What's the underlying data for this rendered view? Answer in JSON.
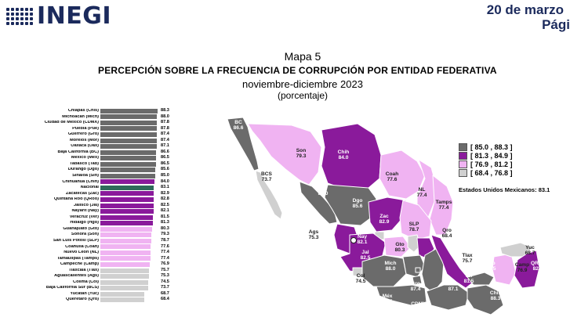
{
  "header": {
    "logo_text": "INEGI",
    "date": "20 de marzo",
    "page": "Pági"
  },
  "map": {
    "label": "Mapa 5",
    "title": "PERCEPCIÓN SOBRE LA FRECUENCIA DE CORRUPCIÓN POR ENTIDAD FEDERATIVA",
    "subtitle": "noviembre-diciembre 2023",
    "unit": "(porcentaje)",
    "national_label": "Estados Unidos Mexicanos:",
    "national_value": "83.1"
  },
  "legend": [
    {
      "label": "[ 85.0 , 88.3 ]",
      "color": "#6b6b6b"
    },
    {
      "label": "[ 81.3 , 84.9 ]",
      "color": "#8a1a9b"
    },
    {
      "label": "[ 76.9 , 81.2 ]",
      "color": "#f0b3f2"
    },
    {
      "label": "[ 68.4 , 76.8 ]",
      "color": "#d0d0d0"
    }
  ],
  "chart_data": {
    "type": "bar",
    "categories": [
      "Chiapas (Chis)",
      "Michoacán (Mich)",
      "Ciudad de México (CDMX)",
      "Puebla (Pue)",
      "Guerrero (Gro)",
      "Morelos (Mor)",
      "Oaxaca (Oax)",
      "Baja California (BC)",
      "México (Méx)",
      "Tabasco (Tab)",
      "Durango (Dgo)",
      "Sinaloa (Sin)",
      "Chihuahua (Chih)",
      "Nacional",
      "Zacatecas (Zac)",
      "Quintana Roo (QRoo)",
      "Jalisco (Jal)",
      "Nayarit (Nay)",
      "Veracruz (Ver)",
      "Hidalgo (Hgo)",
      "Guanajuato (Gto)",
      "Sonora (Son)",
      "San Luis Potosí (SLP)",
      "Coahuila (Coah)",
      "Nuevo León (NL)",
      "Tamaulipas (Tamps)",
      "Campeche (Camp)",
      "Tlaxcala (Tlax)",
      "Aguascalientes (Ags)",
      "Colima (Col)",
      "Baja California Sur (BCS)",
      "Yucatán (Yuc)",
      "Querétaro (Qro)"
    ],
    "values": [
      88.3,
      88.0,
      87.8,
      87.8,
      87.4,
      87.4,
      87.1,
      86.6,
      86.5,
      86.5,
      85.6,
      85.0,
      84.0,
      83.1,
      82.9,
      82.8,
      82.5,
      82.1,
      81.5,
      81.3,
      80.3,
      79.3,
      78.7,
      77.6,
      77.4,
      77.4,
      76.9,
      75.7,
      75.3,
      74.5,
      73.7,
      68.7,
      68.4
    ],
    "colors": [
      "#6b6b6b",
      "#6b6b6b",
      "#6b6b6b",
      "#6b6b6b",
      "#6b6b6b",
      "#6b6b6b",
      "#6b6b6b",
      "#6b6b6b",
      "#6b6b6b",
      "#6b6b6b",
      "#6b6b6b",
      "#6b6b6b",
      "#8a1a9b",
      "#2e6b5a",
      "#8a1a9b",
      "#8a1a9b",
      "#8a1a9b",
      "#8a1a9b",
      "#8a1a9b",
      "#8a1a9b",
      "#f0b3f2",
      "#f0b3f2",
      "#f0b3f2",
      "#f0b3f2",
      "#f0b3f2",
      "#f0b3f2",
      "#f0b3f2",
      "#d0d0d0",
      "#d0d0d0",
      "#d0d0d0",
      "#d0d0d0",
      "#d0d0d0",
      "#d0d0d0"
    ],
    "title": "",
    "xlabel": "",
    "ylabel": ""
  },
  "map_states": [
    {
      "abbr": "BC",
      "value": "86.6",
      "color": "#6b6b6b"
    },
    {
      "abbr": "BCS",
      "value": "73.7",
      "color": "#d0d0d0"
    },
    {
      "abbr": "Son",
      "value": "79.3",
      "color": "#f0b3f2"
    },
    {
      "abbr": "Chih",
      "value": "84.0",
      "color": "#8a1a9b"
    },
    {
      "abbr": "Coah",
      "value": "77.6",
      "color": "#f0b3f2"
    },
    {
      "abbr": "NL",
      "value": "77.4",
      "color": "#f0b3f2"
    },
    {
      "abbr": "Tamps",
      "value": "77.4",
      "color": "#f0b3f2"
    },
    {
      "abbr": "Sin",
      "value": "85.0",
      "color": "#6b6b6b"
    },
    {
      "abbr": "Dgo",
      "value": "85.6",
      "color": "#6b6b6b"
    },
    {
      "abbr": "Zac",
      "value": "82.9",
      "color": "#8a1a9b"
    },
    {
      "abbr": "SLP",
      "value": "78.7",
      "color": "#f0b3f2"
    },
    {
      "abbr": "Ags",
      "value": "75.3",
      "color": "#d0d0d0"
    },
    {
      "abbr": "Nay",
      "value": "82.1",
      "color": "#8a1a9b"
    },
    {
      "abbr": "Jal",
      "value": "82.5",
      "color": "#8a1a9b"
    },
    {
      "abbr": "Gto",
      "value": "80.3",
      "color": "#f0b3f2"
    },
    {
      "abbr": "Qro",
      "value": "68.4",
      "color": "#d0d0d0"
    },
    {
      "abbr": "Hgo",
      "value": "81.3",
      "color": "#8a1a9b"
    },
    {
      "abbr": "Col",
      "value": "74.5",
      "color": "#d0d0d0"
    },
    {
      "abbr": "Mich",
      "value": "88.0",
      "color": "#6b6b6b"
    },
    {
      "abbr": "Méx",
      "value": "86.5",
      "color": "#6b6b6b"
    },
    {
      "abbr": "CDMX",
      "value": "87.8",
      "color": "#6b6b6b"
    },
    {
      "abbr": "Tlax",
      "value": "75.7",
      "color": "#d0d0d0"
    },
    {
      "abbr": "Mor",
      "value": "87.4",
      "color": "#6b6b6b"
    },
    {
      "abbr": "Pue",
      "value": "87.8",
      "color": "#6b6b6b"
    },
    {
      "abbr": "Gro",
      "value": "87.4",
      "color": "#6b6b6b"
    },
    {
      "abbr": "Oax",
      "value": "87.1",
      "color": "#6b6b6b"
    },
    {
      "abbr": "Ver",
      "value": "81.5",
      "color": "#8a1a9b"
    },
    {
      "abbr": "Tab",
      "value": "86.5",
      "color": "#6b6b6b"
    },
    {
      "abbr": "Chis",
      "value": "88.3",
      "color": "#6b6b6b"
    },
    {
      "abbr": "Camp",
      "value": "76.9",
      "color": "#f0b3f2"
    },
    {
      "abbr": "Yuc",
      "value": "68.7",
      "color": "#d0d0d0"
    },
    {
      "abbr": "QRoo",
      "value": "82.8",
      "color": "#8a1a9b"
    }
  ]
}
